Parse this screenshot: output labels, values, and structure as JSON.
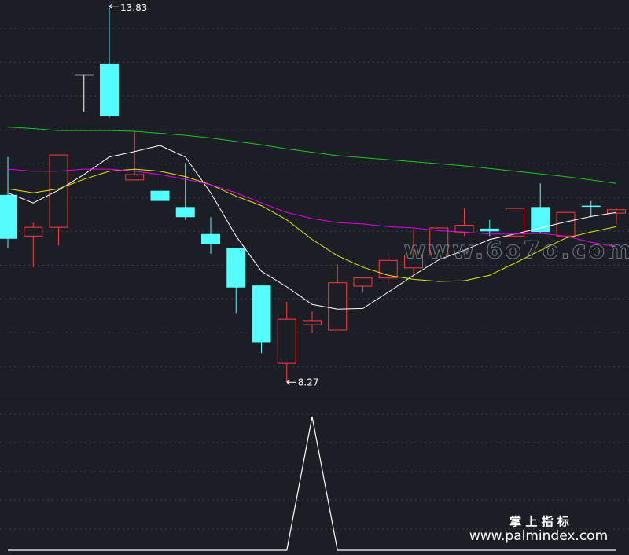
{
  "chart_data": [
    {
      "type": "candlestick",
      "open": [
        11.04,
        10.43,
        10.56,
        12.81,
        12.98,
        11.26,
        11.1,
        10.86,
        10.46,
        10.25,
        9.7,
        8.55,
        9.12,
        9.04,
        9.69,
        9.81,
        9.96,
        10.15,
        10.48,
        10.54,
        10.43,
        10.86,
        10.43,
        10.88,
        10.77
      ],
      "high": [
        11.6,
        10.63,
        11.63,
        12.81,
        13.83,
        11.99,
        11.6,
        11.51,
        10.71,
        10.25,
        9.7,
        9.46,
        9.32,
        10.01,
        9.81,
        10.17,
        10.53,
        10.56,
        10.84,
        10.67,
        10.84,
        11.21,
        10.78,
        10.95,
        10.85
      ],
      "low": [
        10.25,
        9.97,
        10.29,
        12.27,
        12.18,
        11.26,
        10.95,
        10.67,
        10.17,
        9.29,
        8.7,
        8.27,
        8.99,
        9.04,
        9.6,
        9.69,
        9.83,
        10.15,
        10.43,
        10.43,
        10.43,
        10.48,
        10.43,
        10.71,
        10.61
      ],
      "close": [
        10.39,
        10.56,
        11.63,
        12.81,
        12.2,
        11.34,
        10.95,
        10.71,
        10.31,
        9.67,
        8.86,
        9.2,
        9.18,
        9.74,
        9.81,
        10.07,
        10.15,
        10.55,
        10.59,
        10.5,
        10.84,
        10.49,
        10.78,
        10.87,
        10.82
      ],
      "up_color": "#ff3b3b",
      "down_color": "#54fcfc",
      "flat_color": "#ffffff",
      "lines": [
        {
          "color": "#ffffff",
          "values": [
            11.07,
            10.92,
            11.11,
            11.34,
            11.6,
            11.68,
            11.77,
            11.6,
            11.07,
            10.43,
            9.91,
            9.68,
            9.42,
            9.35,
            9.36,
            9.6,
            9.85,
            10.08,
            10.22,
            10.38,
            10.46,
            10.55,
            10.64,
            10.72,
            10.78
          ]
        },
        {
          "color": "#e6e600",
          "values": [
            11.13,
            11.07,
            11.13,
            11.27,
            11.39,
            11.42,
            11.39,
            11.31,
            11.19,
            11.02,
            10.88,
            10.67,
            10.38,
            10.14,
            9.97,
            9.85,
            9.79,
            9.76,
            9.77,
            9.85,
            10.03,
            10.22,
            10.4,
            10.49,
            10.57
          ]
        },
        {
          "color": "#e600e6",
          "values": [
            11.42,
            11.39,
            11.39,
            11.42,
            11.42,
            11.39,
            11.34,
            11.27,
            11.19,
            11.07,
            10.92,
            10.78,
            10.69,
            10.63,
            10.61,
            10.57,
            10.55,
            10.51,
            10.49,
            10.46,
            10.46,
            10.47,
            10.43,
            10.34,
            10.27
          ]
        },
        {
          "color": "#22c022",
          "values": [
            12.04,
            12.02,
            11.99,
            11.99,
            11.99,
            11.98,
            11.95,
            11.92,
            11.88,
            11.83,
            11.78,
            11.72,
            11.67,
            11.62,
            11.59,
            11.56,
            11.53,
            11.5,
            11.47,
            11.43,
            11.39,
            11.35,
            11.31,
            11.26,
            11.21
          ]
        }
      ],
      "ylim": [
        8.04,
        13.92
      ],
      "yticks": [
        8.5,
        9,
        9.5,
        10,
        10.5,
        11,
        11.5,
        12,
        12.5,
        13,
        13.5
      ],
      "grid": true
    },
    {
      "type": "line",
      "color": "#ffffff",
      "values": [
        0,
        0,
        0,
        0,
        0,
        0,
        0,
        0,
        0,
        0,
        0,
        0,
        1,
        0,
        0,
        0,
        0,
        0,
        0,
        0,
        0,
        0,
        0,
        0,
        0
      ],
      "ylim": [
        0,
        1
      ]
    }
  ],
  "watermarks": [
    "www.6o7o.com",
    "掌 上 指 标",
    "www.palmindex.com"
  ]
}
